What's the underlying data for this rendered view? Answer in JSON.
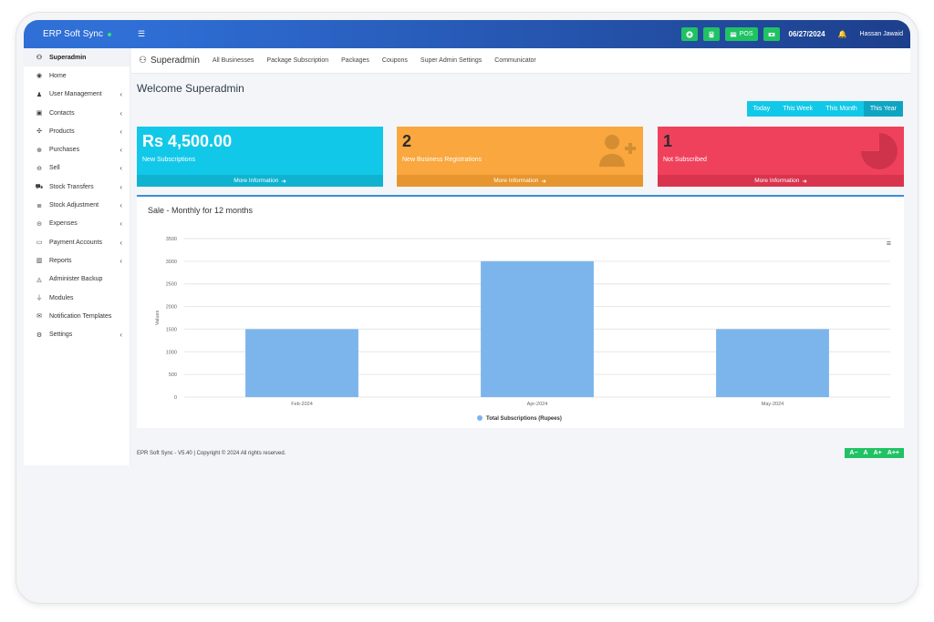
{
  "brand": {
    "name": "ERP Soft Sync"
  },
  "topbar": {
    "pos_label": "POS",
    "date": "06/27/2024",
    "user": "Hassan Jawaid"
  },
  "sidebar": {
    "items": [
      {
        "label": "Superadmin",
        "icon": "superadmin-icon",
        "glyph": "⚇",
        "has_children": false
      },
      {
        "label": "Home",
        "icon": "home-icon",
        "glyph": "◉",
        "has_children": false
      },
      {
        "label": "User Management",
        "icon": "users-icon",
        "glyph": "♟",
        "has_children": true
      },
      {
        "label": "Contacts",
        "icon": "contacts-icon",
        "glyph": "▣",
        "has_children": true
      },
      {
        "label": "Products",
        "icon": "products-icon",
        "glyph": "✣",
        "has_children": true
      },
      {
        "label": "Purchases",
        "icon": "purchases-icon",
        "glyph": "⊕",
        "has_children": true
      },
      {
        "label": "Sell",
        "icon": "sell-icon",
        "glyph": "⊖",
        "has_children": true
      },
      {
        "label": "Stock Transfers",
        "icon": "truck-icon",
        "glyph": "⛟",
        "has_children": true
      },
      {
        "label": "Stock Adjustment",
        "icon": "database-icon",
        "glyph": "≣",
        "has_children": true
      },
      {
        "label": "Expenses",
        "icon": "expenses-icon",
        "glyph": "⊝",
        "has_children": true
      },
      {
        "label": "Payment Accounts",
        "icon": "money-icon",
        "glyph": "▭",
        "has_children": true
      },
      {
        "label": "Reports",
        "icon": "reports-icon",
        "glyph": "▥",
        "has_children": true
      },
      {
        "label": "Administer Backup",
        "icon": "backup-icon",
        "glyph": "◬",
        "has_children": false
      },
      {
        "label": "Modules",
        "icon": "plug-icon",
        "glyph": "⏚",
        "has_children": false
      },
      {
        "label": "Notification Templates",
        "icon": "envelope-icon",
        "glyph": "✉",
        "has_children": false
      },
      {
        "label": "Settings",
        "icon": "gear-icon",
        "glyph": "⚙",
        "has_children": true
      }
    ]
  },
  "nav": {
    "title": "Superadmin",
    "links": [
      "All Businesses",
      "Package Subscription",
      "Packages",
      "Coupons",
      "Super Admin Settings",
      "Communicator"
    ]
  },
  "page": {
    "welcome": "Welcome Superadmin"
  },
  "ranges": [
    "Today",
    "This Week",
    "This Month",
    "This Year"
  ],
  "cards": [
    {
      "value": "Rs 4,500.00",
      "label": "New Subscriptions",
      "more": "More Information"
    },
    {
      "value": "2",
      "label": "New Business Registrations",
      "more": "More Information"
    },
    {
      "value": "1",
      "label": "Not Subscribed",
      "more": "More Information"
    }
  ],
  "colors": {
    "accent": "#2f6fd6",
    "cyan": "#12c8e8",
    "orange": "#f9a73e",
    "red": "#f0415c",
    "green": "#20c264",
    "bar": "#7cb5ec"
  },
  "chart_data": {
    "type": "bar",
    "title": "Sale - Monthly for 12 months",
    "categories": [
      "Feb-2024",
      "Apr-2024",
      "May-2024"
    ],
    "series": [
      {
        "name": "Total Subscriptions (Rupees)",
        "values": [
          1500,
          3000,
          1500
        ]
      }
    ],
    "ylabel": "Values",
    "ylim": [
      0,
      3500
    ],
    "yticks": [
      0,
      500,
      1000,
      1500,
      2000,
      2500,
      3000,
      3500
    ],
    "grid": true,
    "legend": "bottom-center"
  },
  "footer": {
    "text": "EPR Soft Sync - V5.40 | Copyright © 2024 All rights reserved.",
    "font_buttons": [
      "A−",
      "A",
      "A+",
      "A++"
    ]
  }
}
